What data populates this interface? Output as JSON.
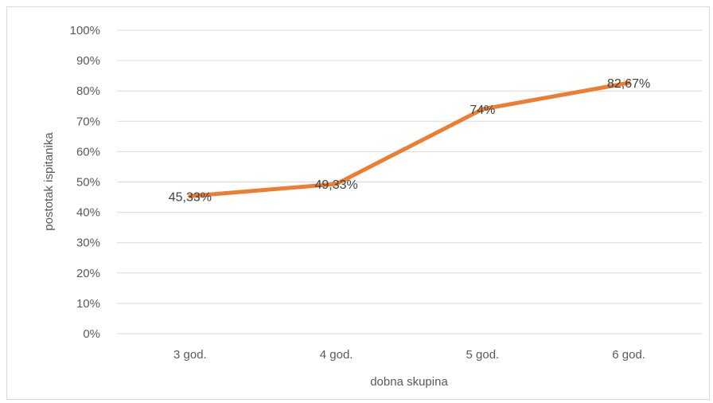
{
  "chart_data": {
    "type": "line",
    "categories": [
      "3 god.",
      "4 god.",
      "5 god.",
      "6 god."
    ],
    "series": [
      {
        "values": [
          45.33,
          49.33,
          74,
          82.67
        ],
        "data_labels": [
          "45,33%",
          "49,33%",
          "74%",
          "82,67%"
        ],
        "color": "#ED7D31"
      }
    ],
    "xlabel": "dobna skupina",
    "ylabel": "postotak ispitanika",
    "ylim": [
      0,
      100
    ],
    "y_tick_labels": [
      "0%",
      "10%",
      "20%",
      "30%",
      "40%",
      "50%",
      "60%",
      "70%",
      "80%",
      "90%",
      "100%"
    ],
    "grid": true,
    "gridline_color": "#d9d9d9",
    "legend": "none"
  }
}
